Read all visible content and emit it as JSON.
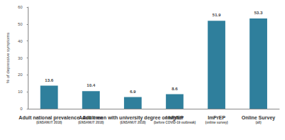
{
  "chart_data": {
    "type": "bar",
    "y_label": "% of depressive symptoms",
    "categories": [
      "Adult national prevalence\n(ENSANUT 2018)",
      "Adult men\n(ENSANUT 2018)",
      "Adult men with university degree or higher\n(ENSANUT 2018)",
      "ImPrEP\n(before COVID-19 outbreak)",
      "ImPrEP\n(online survey)",
      "Online Survey\n(all)"
    ],
    "values": [
      13.6,
      10.4,
      6.9,
      8.6,
      51.9,
      53.3
    ],
    "color": "#2f7f9c",
    "ylim": [
      0,
      60
    ],
    "yticks": [
      0,
      10,
      20,
      30,
      40,
      50,
      60
    ],
    "grid": false,
    "data_labels": true
  }
}
